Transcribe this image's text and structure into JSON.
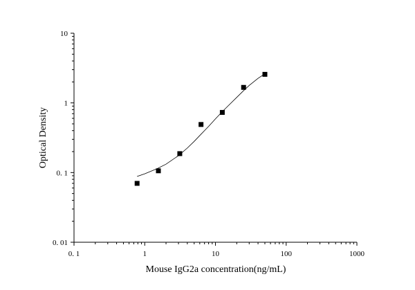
{
  "chart_data": {
    "type": "scatter",
    "title": "",
    "xlabel": "Mouse IgG2a concentration(ng/mL)",
    "ylabel": "Optical Density",
    "xscale": "log",
    "yscale": "log",
    "xlim": [
      0.1,
      1000
    ],
    "ylim": [
      0.01,
      10
    ],
    "grid": false,
    "legend": "none",
    "x_ticks": [
      "0. 1",
      "1",
      "10",
      "100",
      "1000"
    ],
    "y_ticks": [
      "0. 01",
      "0. 1",
      "1",
      "10"
    ],
    "series": [
      {
        "marker": "square",
        "color": "#000000",
        "x": [
          0.78,
          1.56,
          3.13,
          6.25,
          12.5,
          25,
          50
        ],
        "y": [
          0.07,
          0.106,
          0.187,
          0.49,
          0.73,
          1.67,
          2.57
        ]
      }
    ],
    "fit_curve": {
      "color": "#000000",
      "x": [
        0.78,
        1.0,
        1.5,
        2.0,
        3.0,
        4.0,
        5.0,
        6.0,
        7.0,
        8.0,
        10.0,
        12.5,
        15.0,
        20.0,
        25.0,
        30.0,
        40.0,
        50.0
      ],
      "y": [
        0.088,
        0.096,
        0.114,
        0.132,
        0.175,
        0.225,
        0.28,
        0.34,
        0.4,
        0.46,
        0.59,
        0.75,
        0.9,
        1.2,
        1.5,
        1.78,
        2.25,
        2.62
      ]
    }
  }
}
